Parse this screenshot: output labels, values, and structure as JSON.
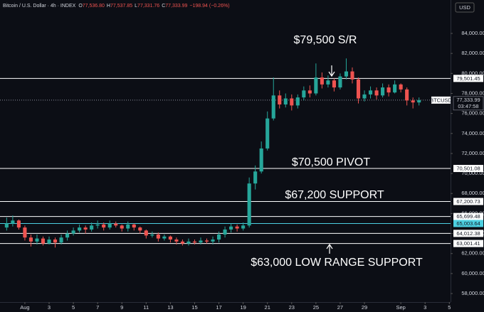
{
  "chart_data": {
    "type": "candlestick",
    "header": {
      "title": "Bitcoin / U.S. Dollar · 4h · INDEX",
      "fields": [
        {
          "key": "O",
          "value": 77536.8,
          "label": "77,536.80"
        },
        {
          "key": "H",
          "value": 77537.85,
          "label": "77,537.85"
        },
        {
          "key": "L",
          "value": 77331.76,
          "label": "77,331.76"
        },
        {
          "key": "C",
          "value": 77333.99,
          "label": "77,333.99"
        }
      ],
      "change": {
        "value": -198.94,
        "label": "−198.94",
        "percent": -0.26,
        "percent_label": "(−0.26%)"
      }
    },
    "currency": "USD",
    "up_color": "#26a69a",
    "down_color": "#ef5350",
    "grid": false,
    "x": [
      -0.5,
      0,
      0.5,
      1,
      1.5,
      2,
      2.5,
      3,
      3.5,
      4,
      4.5,
      5,
      5.5,
      6,
      6.5,
      7,
      7.5,
      8,
      8.5,
      9,
      9.5,
      10,
      10.5,
      11,
      11.5,
      12,
      12.5,
      13,
      13.5,
      14,
      14.5,
      15,
      15.5,
      16,
      16.5,
      17,
      17.5,
      18,
      18.5,
      19,
      19.5,
      20,
      20.5,
      21,
      21.5,
      22,
      22.5,
      23,
      23.5,
      24,
      24.5,
      25,
      25.5,
      26,
      26.5,
      27,
      27.5,
      28,
      28.5,
      29,
      29.5,
      30,
      30.5,
      31,
      31.5,
      32,
      32.5,
      33,
      33.5
    ],
    "open": [
      64600,
      65000,
      65300,
      64600,
      63600,
      63200,
      63500,
      63000,
      63400,
      63100,
      63600,
      64000,
      64300,
      64600,
      64400,
      64800,
      64900,
      64600,
      65000,
      64800,
      64500,
      64900,
      64600,
      64300,
      63800,
      63900,
      63500,
      63700,
      63400,
      63200,
      63000,
      63200,
      63100,
      63300,
      63200,
      63400,
      63900,
      64400,
      64700,
      64500,
      64800,
      69000,
      70200,
      72500,
      75500,
      77800,
      76900,
      77500,
      76800,
      77600,
      78300,
      78000,
      79600,
      78900,
      79300,
      78600,
      79700,
      80200,
      79400,
      77500,
      77900,
      78300,
      77800,
      78600,
      78100,
      78900,
      78400,
      77300,
      77100
    ],
    "high": [
      65600,
      65800,
      65400,
      64800,
      63900,
      63900,
      63700,
      63700,
      63600,
      63900,
      64300,
      64600,
      64900,
      64800,
      65100,
      65300,
      65100,
      65300,
      65200,
      64900,
      65200,
      65000,
      64700,
      64400,
      64200,
      64100,
      63900,
      63800,
      63600,
      63400,
      63500,
      63400,
      63600,
      63500,
      63700,
      64200,
      64700,
      65000,
      64900,
      65100,
      69600,
      70800,
      73200,
      76200,
      79600,
      78300,
      78000,
      77900,
      77900,
      78700,
      78800,
      81000,
      80100,
      79800,
      79500,
      80000,
      81500,
      80600,
      79600,
      78300,
      78700,
      78600,
      79000,
      78900,
      79300,
      79000,
      78600,
      77600,
      77600
    ],
    "low": [
      64300,
      64700,
      64400,
      63300,
      62700,
      62900,
      62800,
      62900,
      62600,
      62900,
      63300,
      63800,
      64100,
      64000,
      64200,
      64500,
      64300,
      64400,
      64600,
      64200,
      64200,
      64300,
      64000,
      63500,
      63600,
      63200,
      63300,
      63100,
      62900,
      62800,
      62800,
      62900,
      62900,
      63000,
      62900,
      63100,
      63600,
      64100,
      64200,
      64300,
      64600,
      68400,
      70000,
      72300,
      75300,
      76500,
      76600,
      76300,
      76500,
      77300,
      77600,
      77800,
      78500,
      78600,
      78200,
      78400,
      79400,
      79000,
      77000,
      77200,
      77500,
      77400,
      77600,
      77700,
      78000,
      78100,
      76800,
      76500,
      76800
    ],
    "close": [
      65000,
      65300,
      64600,
      63600,
      63200,
      63500,
      63000,
      63400,
      63100,
      63600,
      64000,
      64300,
      64600,
      64400,
      64800,
      64900,
      64600,
      65000,
      64800,
      64500,
      64900,
      64600,
      64300,
      63800,
      63900,
      63500,
      63700,
      63400,
      63200,
      63000,
      63200,
      63100,
      63300,
      63200,
      63400,
      63900,
      64400,
      64700,
      64500,
      64800,
      69000,
      70200,
      72500,
      75500,
      77800,
      76900,
      77500,
      76800,
      77600,
      78300,
      78000,
      79600,
      78900,
      79300,
      78600,
      79700,
      80200,
      79400,
      77500,
      77900,
      78300,
      77800,
      78600,
      78100,
      78900,
      78400,
      77300,
      77100,
      77334
    ],
    "xlim": [
      -1.05,
      36.1
    ],
    "xticks": [
      {
        "value": 1,
        "label": "Aug"
      },
      3,
      5,
      7,
      9,
      11,
      13,
      15,
      17,
      19,
      21,
      23,
      25,
      27,
      29,
      {
        "value": 32,
        "label": "Sep"
      },
      {
        "value": 34,
        "label": "3"
      },
      {
        "value": 36,
        "label": "5"
      }
    ],
    "ylim": [
      57150,
      87340
    ],
    "yticks": [
      {
        "value": 58000,
        "label": "58,000.00"
      },
      {
        "value": 60000,
        "label": "60,000.00"
      },
      {
        "value": 62000,
        "label": "62,000.00"
      },
      {
        "value": 64000,
        "label": "64,000.00"
      },
      {
        "value": 66000,
        "label": "66,000.00"
      },
      {
        "value": 68000,
        "label": "68,000.00"
      },
      {
        "value": 70000,
        "label": "70,000.00"
      },
      {
        "value": 72000,
        "label": "72,000.00"
      },
      {
        "value": 74000,
        "label": "74,000.00"
      },
      {
        "value": 76000,
        "label": "76,000.00"
      },
      {
        "value": 78000,
        "label": "78,000.00"
      },
      {
        "value": 80000,
        "label": "80,000.00"
      },
      {
        "value": 82000,
        "label": "82,000.00"
      },
      {
        "value": 84000,
        "label": "84,000.00"
      }
    ],
    "levels": [
      {
        "value": 79501.45,
        "label": "79,501.45",
        "color": "#ffffff"
      },
      {
        "value": 70501.08,
        "label": "70,501.08",
        "color": "#ffffff"
      },
      {
        "value": 67200.73,
        "label": "67,200.73",
        "color": "#ffffff"
      },
      {
        "value": 65699.48,
        "label": "65,699.48",
        "color": "#ffffff"
      },
      {
        "value": 65003.64,
        "label": "65,003.64",
        "color": "#4dd0e1"
      },
      {
        "value": 64012.38,
        "label": "64,012.38",
        "color": "#ffffff"
      },
      {
        "value": 63001.41,
        "label": "63,001.41",
        "color": "#ffffff"
      }
    ],
    "last_price": {
      "value": 77333.99,
      "label": "77,333.99",
      "symbol": "BTCUSD",
      "countdown": "03:47:58"
    },
    "annotations": [
      "$79,500 S/R",
      "$70,500 PIVOT",
      "$67,200 SUPPORT",
      "$63,000 LOW RANGE SUPPORT"
    ]
  }
}
